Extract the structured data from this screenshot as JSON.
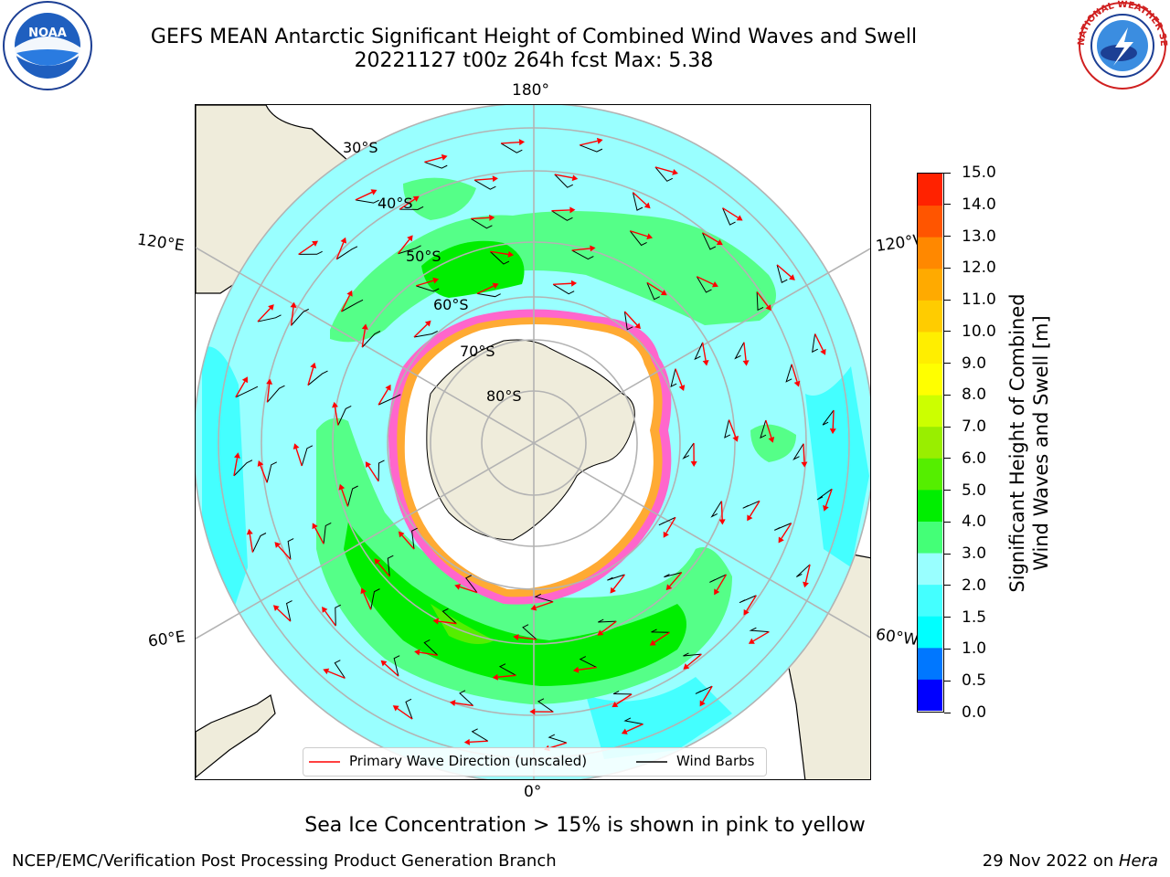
{
  "title": {
    "line1": "GEFS MEAN Antarctic Significant Height of Combined Wind Waves and Swell",
    "line2": "20221127 t00z 264h fcst   Max: 5.38"
  },
  "logos": {
    "noaa_text": "NOAA",
    "nws_ring_text": "NATIONAL WEATHER SERVICE"
  },
  "map": {
    "lon_labels": [
      "180°",
      "120°E",
      "120°W",
      "60°E",
      "60°W",
      "0°"
    ],
    "lat_labels": [
      "30°S",
      "40°S",
      "50°S",
      "60°S",
      "70°S",
      "80°S"
    ],
    "legend": {
      "wave_label": "Primary Wave Direction (unscaled)",
      "wind_label": "Wind Barbs",
      "wave_color": "#ff0000",
      "wind_color": "#000000"
    },
    "colors": {
      "land": "#efecdb",
      "ice_white": "#ffffff",
      "ice_pink": "#ff66cc",
      "ice_magenta": "#cc33ff",
      "ice_orange": "#ffaa33",
      "wave_low": "#99ffff",
      "wave_mid": "#55ff88",
      "wave_high": "#00ee00",
      "grid": "#b3b3b3"
    }
  },
  "colorbar": {
    "title_line1": "Significant Height of Combined",
    "title_line2": "Wind Waves and Swell [m]",
    "ticks": [
      "0.0",
      "0.5",
      "1.0",
      "1.5",
      "2.0",
      "3.0",
      "4.0",
      "5.0",
      "6.0",
      "7.0",
      "8.0",
      "9.0",
      "10.0",
      "11.0",
      "12.0",
      "13.0",
      "14.0",
      "15.0"
    ],
    "colors": [
      "#0000ff",
      "#0077ff",
      "#00ffff",
      "#44ffff",
      "#99ffff",
      "#44ff77",
      "#00ee00",
      "#55ee00",
      "#99ee00",
      "#ccff00",
      "#ffff00",
      "#ffee00",
      "#ffcc00",
      "#ffaa00",
      "#ff8800",
      "#ff5500",
      "#ff2200"
    ]
  },
  "caption": "Sea Ice Concentration > 15% is shown in pink to yellow",
  "footer": {
    "left": "NCEP/EMC/Verification Post Processing Product Generation Branch",
    "right_prefix": "29 Nov 2022 on ",
    "right_host": "Hera"
  }
}
